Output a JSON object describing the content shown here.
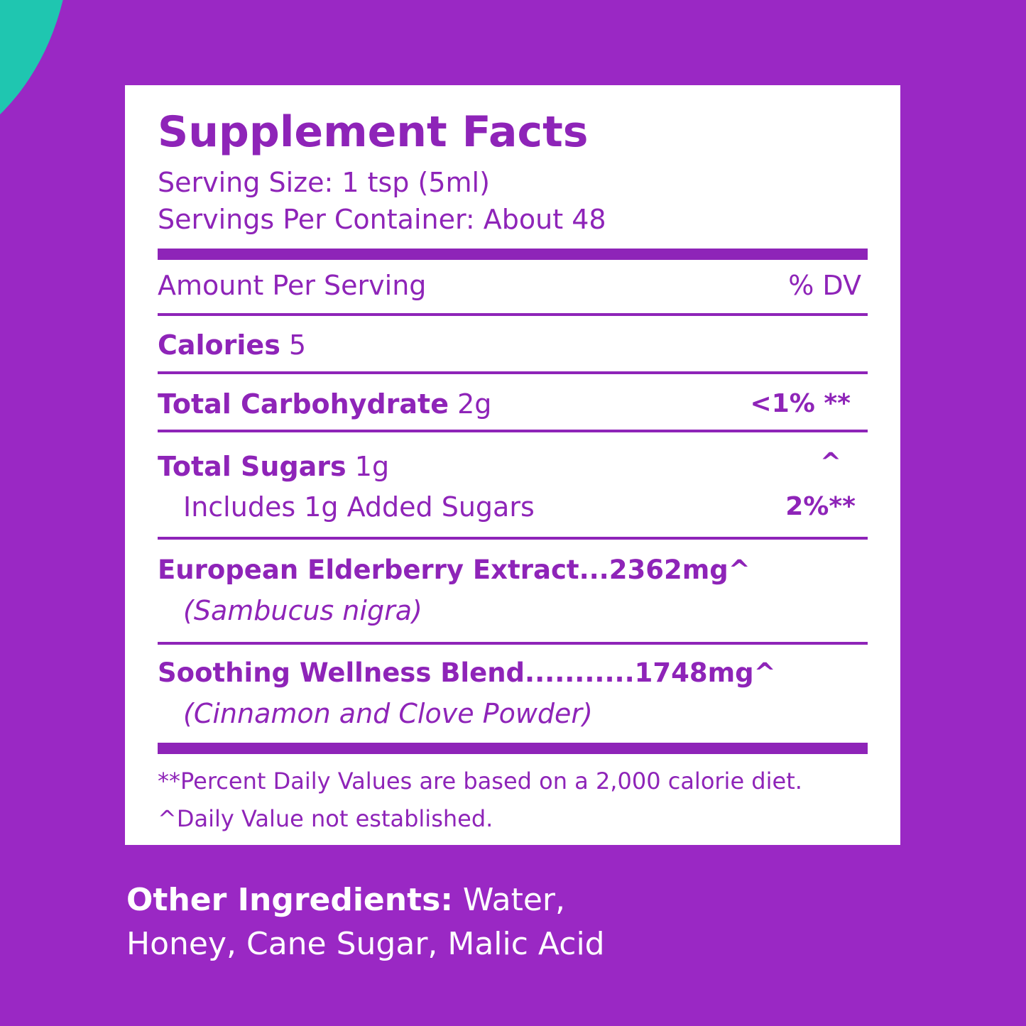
{
  "panel": {
    "title": "Supplement Facts",
    "serving_size": "Serving Size: 1 tsp (5ml)",
    "servings_per_container": "Servings Per Container: About 48",
    "header": {
      "left": "Amount Per Serving",
      "right": "% DV"
    },
    "calories": {
      "name": "Calories",
      "amount": "5"
    },
    "carbohydrate": {
      "name": "Total Carbohydrate",
      "amount": "2g",
      "dv": "<1% **"
    },
    "sugars": {
      "name": "Total Sugars",
      "amount": "1g",
      "dv": "^",
      "sub": "Includes 1g Added Sugars",
      "sub_dv": "2%**"
    },
    "elderberry": {
      "name": "European Elderberry Extract...2362mg^",
      "sub": "(Sambucus nigra)"
    },
    "blend": {
      "name": "Soothing Wellness Blend...........1748mg^",
      "sub": "(Cinnamon and Clove Powder)"
    },
    "footnotes": [
      "**Percent Daily Values are based on a 2,000 calorie diet.",
      "^Daily Value not established."
    ]
  },
  "other_ingredients": {
    "label": "Other Ingredients:",
    "lines": [
      "Water,",
      "Honey, Cane Sugar, Malic Acid"
    ]
  }
}
